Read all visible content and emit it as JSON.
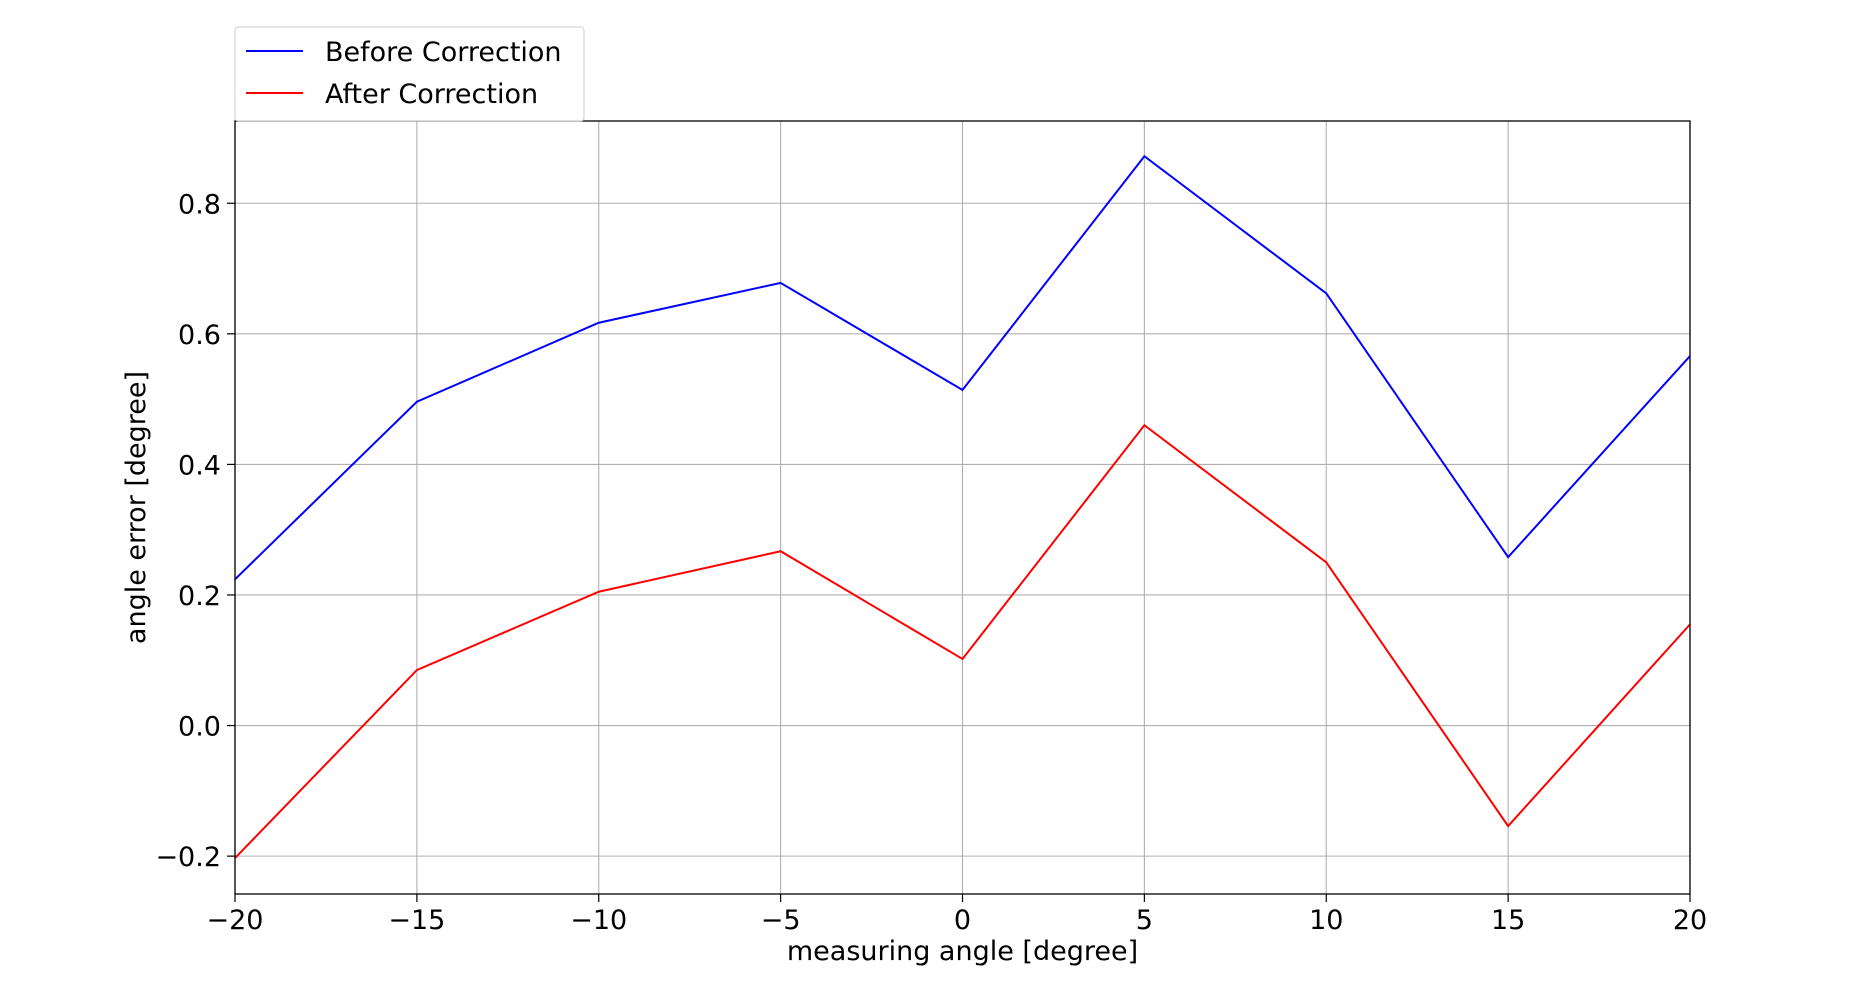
{
  "chart_data": {
    "type": "line",
    "title": "",
    "xlabel": "measuring angle [degree]",
    "ylabel": "angle error [degree]",
    "x": [
      -20,
      -15,
      -10,
      -5,
      0,
      5,
      10,
      15,
      20
    ],
    "series": [
      {
        "name": "Before Correction",
        "color": "#0000ff",
        "values": [
          0.224,
          0.496,
          0.617,
          0.678,
          0.514,
          0.872,
          0.662,
          0.258,
          0.566
        ]
      },
      {
        "name": "After Correction",
        "color": "#ff0000",
        "values": [
          -0.203,
          0.085,
          0.205,
          0.267,
          0.102,
          0.46,
          0.25,
          -0.154,
          0.155
        ]
      }
    ],
    "xlim": [
      -20,
      20
    ],
    "ylim": [
      -0.258,
      0.926
    ],
    "xticks": [
      -20,
      -15,
      -10,
      -5,
      0,
      5,
      10,
      15,
      20
    ],
    "xtick_labels": [
      "−20",
      "−15",
      "−10",
      "−5",
      "0",
      "5",
      "10",
      "15",
      "20"
    ],
    "yticks": [
      -0.2,
      0.0,
      0.2,
      0.4,
      0.6,
      0.8
    ],
    "ytick_labels": [
      "−0.2",
      "0.0",
      "0.2",
      "0.4",
      "0.6",
      "0.8"
    ],
    "grid": true,
    "legend_position": "top-left, above plot"
  }
}
